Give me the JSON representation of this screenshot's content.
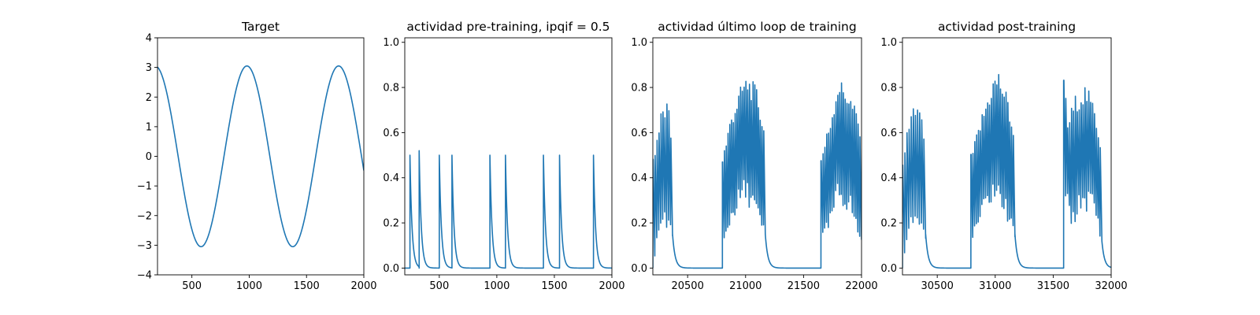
{
  "chart_data": [
    {
      "type": "line",
      "title": "Target",
      "xlim": [
        200,
        2000
      ],
      "ylim": [
        -4,
        4
      ],
      "xticks": [
        500,
        1000,
        1500,
        2000
      ],
      "yticks": [
        -4,
        -3,
        -2,
        -1,
        0,
        1,
        2,
        3,
        4
      ],
      "color": "#1f77b4",
      "function": "3.05*cos(2*pi*(x-980)/800)",
      "x": [
        200,
        300,
        400,
        500,
        580,
        700,
        800,
        900,
        980,
        1100,
        1200,
        1300,
        1380,
        1500,
        1600,
        1700,
        1780,
        1900,
        2000
      ],
      "y": [
        3.0,
        2.35,
        0.9,
        -1.2,
        -3.05,
        -1.7,
        0.5,
        2.5,
        3.05,
        1.8,
        -0.1,
        -2.2,
        -3.05,
        -1.8,
        0.2,
        2.1,
        3.05,
        1.6,
        -0.35
      ]
    },
    {
      "type": "line",
      "title": "actividad pre-training, ipqif = 0.5",
      "xlim": [
        200,
        2000
      ],
      "ylim": [
        -0.03,
        1.02
      ],
      "xticks": [
        500,
        1000,
        1500,
        2000
      ],
      "yticks": [
        0.0,
        0.2,
        0.4,
        0.6,
        0.8,
        1.0
      ],
      "color": "#1f77b4",
      "spikes": [
        {
          "x": 245,
          "peak": 0.5
        },
        {
          "x": 325,
          "peak": 0.52
        },
        {
          "x": 500,
          "peak": 0.5
        },
        {
          "x": 610,
          "peak": 0.5
        },
        {
          "x": 940,
          "peak": 0.5
        },
        {
          "x": 1075,
          "peak": 0.5
        },
        {
          "x": 1405,
          "peak": 0.5
        },
        {
          "x": 1545,
          "peak": 0.5
        },
        {
          "x": 1840,
          "peak": 0.5
        }
      ]
    },
    {
      "type": "line",
      "title": "actividad último loop de training",
      "xlim": [
        20200,
        22000
      ],
      "ylim": [
        -0.03,
        1.02
      ],
      "xticks": [
        20500,
        21000,
        21500,
        22000
      ],
      "yticks": [
        0.0,
        0.2,
        0.4,
        0.6,
        0.8,
        1.0
      ],
      "color": "#1f77b4",
      "bursts": [
        {
          "start": 20200,
          "end": 20370,
          "env": [
            [
              20200,
              0.5
            ],
            [
              20280,
              0.72
            ],
            [
              20330,
              0.74
            ],
            [
              20370,
              0.55
            ]
          ],
          "low": [
            [
              20200,
              0.0
            ],
            [
              20240,
              0.15
            ],
            [
              20300,
              0.25
            ],
            [
              20370,
              0.15
            ]
          ],
          "n": 10
        },
        {
          "start": 20800,
          "end": 21170,
          "env": [
            [
              20800,
              0.5
            ],
            [
              20880,
              0.7
            ],
            [
              20980,
              0.84
            ],
            [
              21020,
              0.86
            ],
            [
              21100,
              0.8
            ],
            [
              21170,
              0.6
            ]
          ],
          "low": [
            [
              20800,
              0.1
            ],
            [
              20880,
              0.25
            ],
            [
              20980,
              0.35
            ],
            [
              21050,
              0.33
            ],
            [
              21170,
              0.15
            ]
          ],
          "n": 24
        },
        {
          "start": 21650,
          "end": 22000,
          "env": [
            [
              21650,
              0.5
            ],
            [
              21720,
              0.65
            ],
            [
              21800,
              0.85
            ],
            [
              21880,
              0.8
            ],
            [
              21960,
              0.7
            ],
            [
              22000,
              0.6
            ]
          ],
          "low": [
            [
              21650,
              0.13
            ],
            [
              21720,
              0.2
            ],
            [
              21800,
              0.35
            ],
            [
              21900,
              0.3
            ],
            [
              22000,
              0.12
            ]
          ],
          "n": 22
        }
      ]
    },
    {
      "type": "line",
      "title": "actividad post-training",
      "xlim": [
        30200,
        32000
      ],
      "ylim": [
        -0.03,
        1.02
      ],
      "xticks": [
        30500,
        31000,
        31500,
        32000
      ],
      "yticks": [
        0.0,
        0.2,
        0.4,
        0.6,
        0.8,
        1.0
      ],
      "color": "#1f77b4",
      "bursts": [
        {
          "start": 30200,
          "end": 30400,
          "env": [
            [
              30200,
              0.5
            ],
            [
              30280,
              0.72
            ],
            [
              30330,
              0.76
            ],
            [
              30400,
              0.57
            ]
          ],
          "low": [
            [
              30200,
              0.0
            ],
            [
              30250,
              0.18
            ],
            [
              30320,
              0.25
            ],
            [
              30400,
              0.15
            ]
          ],
          "n": 11
        },
        {
          "start": 30790,
          "end": 31170,
          "env": [
            [
              30790,
              0.5
            ],
            [
              30880,
              0.68
            ],
            [
              30980,
              0.85
            ],
            [
              31030,
              0.88
            ],
            [
              31100,
              0.78
            ],
            [
              31170,
              0.6
            ]
          ],
          "low": [
            [
              30790,
              0.12
            ],
            [
              30880,
              0.25
            ],
            [
              30980,
              0.36
            ],
            [
              31060,
              0.32
            ],
            [
              31170,
              0.15
            ]
          ],
          "n": 24
        },
        {
          "start": 31590,
          "end": 31920,
          "env": [
            [
              31590,
              0.93
            ],
            [
              31620,
              0.66
            ],
            [
              31700,
              0.78
            ],
            [
              31780,
              0.82
            ],
            [
              31860,
              0.72
            ],
            [
              31920,
              0.55
            ]
          ],
          "low": [
            [
              31590,
              0.45
            ],
            [
              31650,
              0.2
            ],
            [
              31750,
              0.32
            ],
            [
              31850,
              0.3
            ],
            [
              31920,
              0.12
            ]
          ],
          "n": 20
        }
      ]
    }
  ]
}
